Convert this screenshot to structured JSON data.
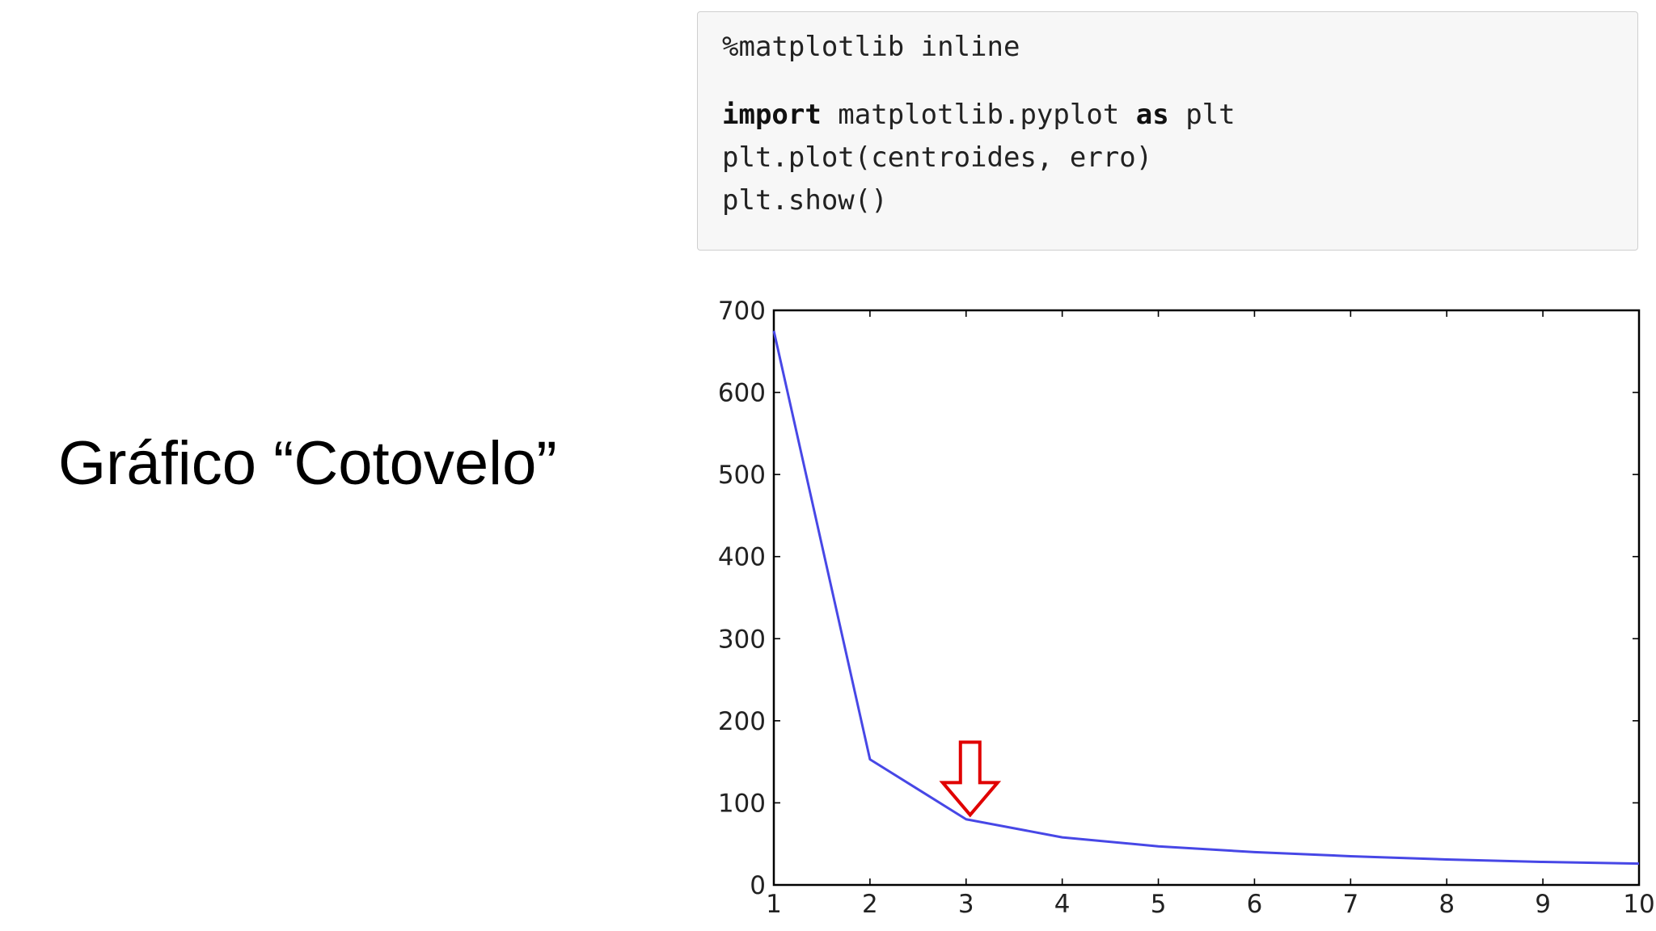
{
  "slide": {
    "title": "Gráfico “Cotovelo”"
  },
  "code": {
    "line1": "%matplotlib inline",
    "line2_kw1": "import",
    "line2_mid": " matplotlib.pyplot ",
    "line2_kw2": "as",
    "line2_end": " plt",
    "line3": "plt.plot(centroides, erro)",
    "line4": "plt.show()"
  },
  "chart_data": {
    "type": "line",
    "x": [
      1,
      2,
      3,
      4,
      5,
      6,
      7,
      8,
      9,
      10
    ],
    "series": [
      {
        "values": [
          675,
          153,
          80,
          58,
          47,
          40,
          35,
          31,
          28,
          26
        ],
        "color": "#4747e6"
      }
    ],
    "xlim": [
      1,
      10
    ],
    "ylim": [
      0,
      700
    ],
    "xticks": [
      1,
      2,
      3,
      4,
      5,
      6,
      7,
      8,
      9,
      10
    ],
    "yticks": [
      0,
      100,
      200,
      300,
      400,
      500,
      600,
      700
    ],
    "grid": false,
    "annotations": [
      {
        "type": "down-arrow",
        "x": 3,
        "y": 105,
        "color": "#e00000"
      }
    ],
    "title": "",
    "xlabel": "",
    "ylabel": ""
  }
}
